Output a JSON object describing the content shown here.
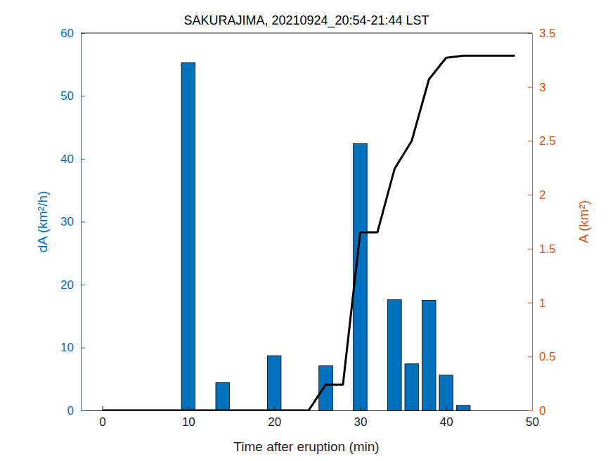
{
  "chart_data": {
    "type": "bar",
    "title": "SAKURAJIMA, 20210924_20:54-21:44 LST",
    "x_label": "Time after eruption (min)",
    "y_label": "dA (km²/h)",
    "y2_label": "A (km²)",
    "xlim": [
      -2.5,
      50
    ],
    "xticks": [
      0,
      10,
      20,
      30,
      40,
      50
    ],
    "ylim": [
      0,
      60
    ],
    "yticks": [
      0,
      10,
      20,
      30,
      40,
      50,
      60
    ],
    "y2lim": [
      0,
      3.5
    ],
    "y2ticks": [
      0,
      0.5,
      1,
      1.5,
      2,
      2.5,
      3,
      3.5
    ],
    "grid": false,
    "series": [
      {
        "type": "bar",
        "color": "#0072bd",
        "x": [
          10,
          14,
          20,
          26,
          30,
          34,
          36,
          38,
          40,
          42
        ],
        "values": [
          55.3,
          4.4,
          8.7,
          7.1,
          42.4,
          17.6,
          7.4,
          17.5,
          5.6,
          0.8
        ]
      },
      {
        "type": "line",
        "color": "#000000",
        "axis": "y2",
        "x": [
          0,
          2,
          4,
          6,
          8,
          10,
          12,
          14,
          16,
          18,
          20,
          22,
          24,
          26,
          28,
          30,
          32,
          34,
          36,
          38,
          40,
          42,
          44,
          46,
          48
        ],
        "values": [
          0,
          0,
          0,
          0,
          0,
          0,
          0,
          0,
          0,
          0,
          0,
          0,
          0,
          0.24,
          0.24,
          1.65,
          1.65,
          2.24,
          2.5,
          3.07,
          3.27,
          3.29,
          3.29,
          3.29,
          3.29
        ]
      }
    ]
  }
}
